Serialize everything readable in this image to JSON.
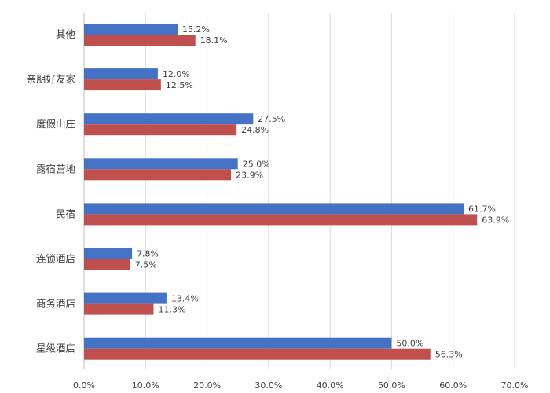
{
  "chart_data": {
    "type": "bar",
    "orientation": "horizontal",
    "title": "",
    "xlabel": "",
    "ylabel": "",
    "categories": [
      "其他",
      "亲朋好友家",
      "度假山庄",
      "露宿营地",
      "民宿",
      "连锁酒店",
      "商务酒店",
      "星级酒店"
    ],
    "series": [
      {
        "color": "#4472C4",
        "values": [
          15.2,
          12.0,
          27.5,
          25.0,
          61.7,
          7.8,
          13.4,
          50.0
        ],
        "labels": [
          "15.2%",
          "12.0%",
          "27.5%",
          "25.0%",
          "61.7%",
          "7.8%",
          "13.4%",
          "50.0%"
        ]
      },
      {
        "color": "#C0504D",
        "values": [
          18.1,
          12.5,
          24.8,
          23.9,
          63.9,
          7.5,
          11.3,
          56.3
        ],
        "labels": [
          "18.1%",
          "12.5%",
          "24.8%",
          "23.9%",
          "63.9%",
          "7.5%",
          "11.3%",
          "56.3%"
        ]
      }
    ],
    "xlim": [
      0,
      70
    ],
    "x_ticks": [
      "0.0%",
      "10.0%",
      "20.0%",
      "30.0%",
      "40.0%",
      "50.0%",
      "60.0%",
      "70.0%"
    ],
    "grid": "vertical",
    "legend": "none"
  }
}
